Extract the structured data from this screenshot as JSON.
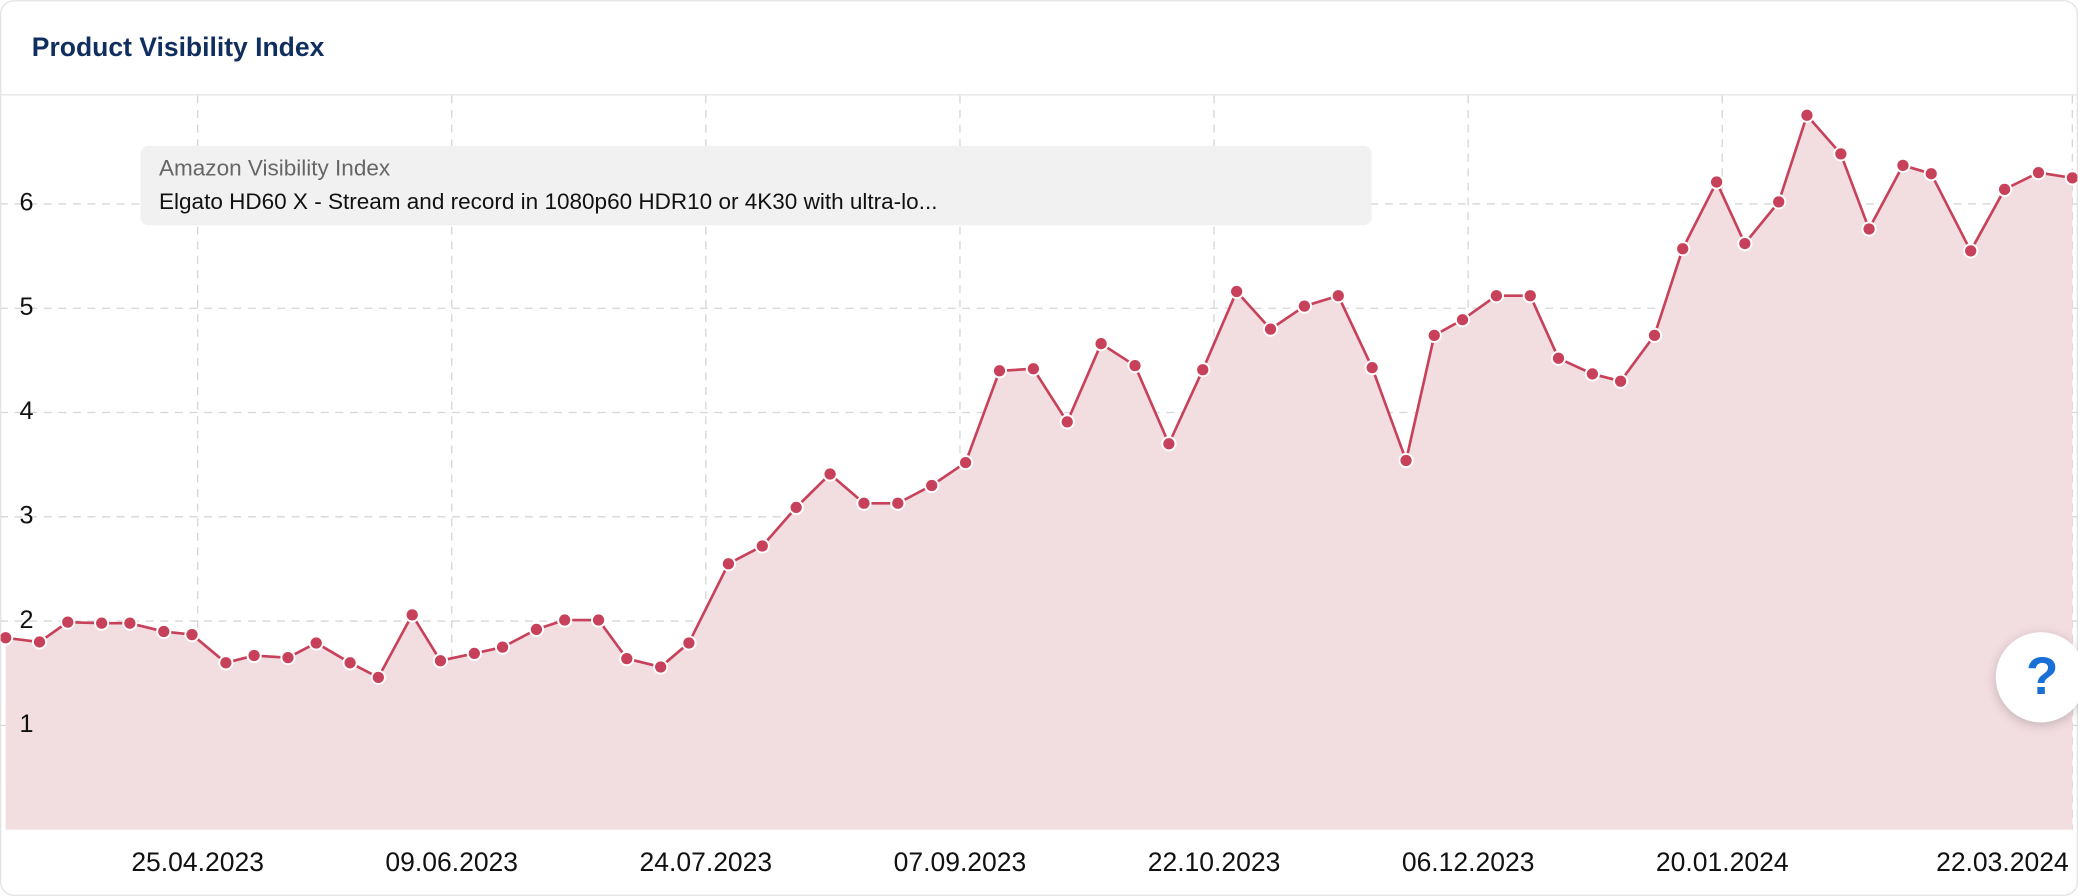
{
  "chart_data": {
    "type": "area",
    "title": "Product Visibility Index",
    "tooltip": {
      "title": "Amazon Visibility Index",
      "text": "Elgato HD60 X - Stream and record in 1080p60 HDR10 or 4K30 with ultra-lo..."
    },
    "help_label": "?",
    "color": "#c8415a",
    "fill_color": "#f2dde1",
    "grid": true,
    "x": [
      "22.03.2023",
      "28.03.2023",
      "02.04.2023",
      "08.04.2023",
      "13.04.2023",
      "19.04.2023",
      "24.04.2023",
      "30.04.2023",
      "05.05.2023",
      "11.05.2023",
      "16.05.2023",
      "22.05.2023",
      "27.05.2023",
      "02.06.2023",
      "07.06.2023",
      "13.06.2023",
      "18.06.2023",
      "24.06.2023",
      "29.06.2023",
      "05.07.2023",
      "10.07.2023",
      "16.07.2023",
      "21.07.2023",
      "28.07.2023",
      "03.08.2023",
      "09.08.2023",
      "15.08.2023",
      "21.08.2023",
      "27.08.2023",
      "02.09.2023",
      "08.09.2023",
      "14.09.2023",
      "20.09.2023",
      "26.09.2023",
      "02.10.2023",
      "08.10.2023",
      "14.10.2023",
      "20.10.2023",
      "26.10.2023",
      "01.11.2023",
      "07.11.2023",
      "13.11.2023",
      "19.11.2023",
      "25.11.2023",
      "30.11.2023",
      "05.12.2023",
      "11.12.2023",
      "17.12.2023",
      "22.12.2023",
      "28.12.2023",
      "02.01.2024",
      "08.01.2024",
      "13.01.2024",
      "19.01.2024",
      "24.01.2024",
      "30.01.2024",
      "04.02.2024",
      "10.02.2024",
      "15.02.2024",
      "21.02.2024",
      "26.02.2024",
      "04.03.2024",
      "10.03.2024",
      "16.03.2024",
      "22.03.2024"
    ],
    "values": [
      1.84,
      1.8,
      1.99,
      1.98,
      1.98,
      1.9,
      1.87,
      1.6,
      1.67,
      1.65,
      1.79,
      1.6,
      1.46,
      2.06,
      1.62,
      1.69,
      1.75,
      1.92,
      2.01,
      2.01,
      1.64,
      1.56,
      1.79,
      2.55,
      2.72,
      3.09,
      3.41,
      3.13,
      3.13,
      3.3,
      3.52,
      4.4,
      4.42,
      3.91,
      4.66,
      4.45,
      3.7,
      4.41,
      5.16,
      4.8,
      5.02,
      5.12,
      4.43,
      3.54,
      4.74,
      4.89,
      5.12,
      5.12,
      4.52,
      4.37,
      4.3,
      4.74,
      5.57,
      6.21,
      5.62,
      6.02,
      6.85,
      6.48,
      5.76,
      6.37,
      6.29,
      5.55,
      6.14,
      6.3,
      6.25
    ],
    "xlim": [
      "21.03.2023",
      "23.03.2024"
    ],
    "xticks": [
      "25.04.2023",
      "09.06.2023",
      "24.07.2023",
      "07.09.2023",
      "22.10.2023",
      "06.12.2023",
      "20.01.2024",
      "22.03.2024"
    ],
    "ylim": [
      0,
      7.04
    ],
    "yticks": [
      1,
      2,
      3,
      4,
      5,
      6
    ]
  }
}
